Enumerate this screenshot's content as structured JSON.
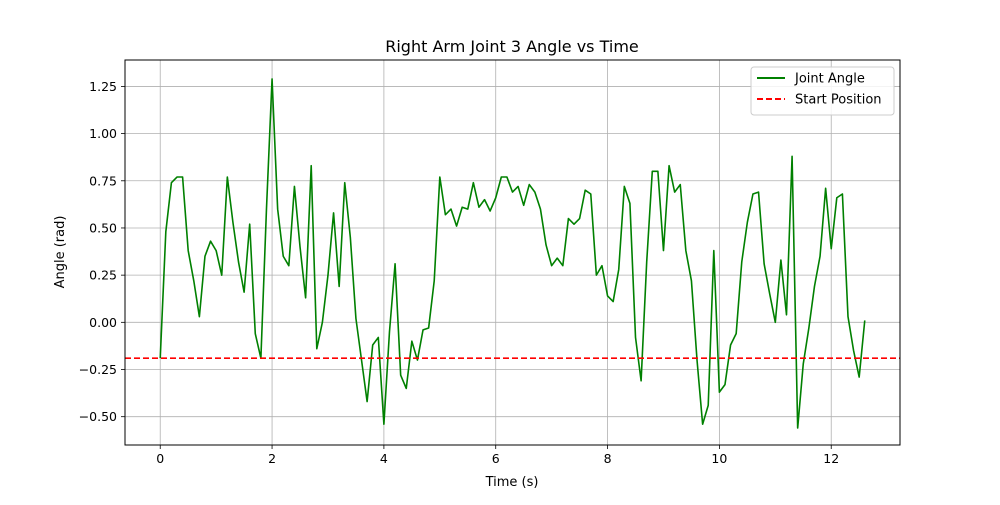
{
  "chart_data": {
    "type": "line",
    "title": "Right Arm Joint 3 Angle vs Time",
    "xlabel": "Time (s)",
    "ylabel": "Angle (rad)",
    "xlim": [
      -0.63,
      13.23
    ],
    "ylim": [
      -0.65,
      1.39
    ],
    "xticks": [
      0,
      2,
      4,
      6,
      8,
      10,
      12
    ],
    "xtick_labels": [
      "0",
      "2",
      "4",
      "6",
      "8",
      "10",
      "12"
    ],
    "yticks": [
      -0.5,
      -0.25,
      0.0,
      0.25,
      0.5,
      0.75,
      1.0,
      1.25
    ],
    "ytick_labels": [
      "−0.50",
      "−0.25",
      "0.00",
      "0.25",
      "0.50",
      "0.75",
      "1.00",
      "1.25"
    ],
    "grid": true,
    "legend_position": "top-right",
    "series": [
      {
        "name": "Joint Angle",
        "color": "#008000",
        "style": "solid",
        "x": [
          0.0,
          0.1,
          0.2,
          0.3,
          0.4,
          0.5,
          0.6,
          0.7,
          0.8,
          0.9,
          1.0,
          1.1,
          1.2,
          1.3,
          1.4,
          1.5,
          1.6,
          1.7,
          1.8,
          1.9,
          2.0,
          2.1,
          2.2,
          2.3,
          2.4,
          2.5,
          2.6,
          2.7,
          2.8,
          2.9,
          3.0,
          3.1,
          3.2,
          3.3,
          3.4,
          3.5,
          3.6,
          3.7,
          3.8,
          3.9,
          4.0,
          4.1,
          4.2,
          4.3,
          4.4,
          4.5,
          4.6,
          4.7,
          4.8,
          4.9,
          5.0,
          5.1,
          5.2,
          5.3,
          5.4,
          5.5,
          5.6,
          5.7,
          5.8,
          5.9,
          6.0,
          6.1,
          6.2,
          6.3,
          6.4,
          6.5,
          6.6,
          6.7,
          6.8,
          6.9,
          7.0,
          7.1,
          7.2,
          7.3,
          7.4,
          7.5,
          7.6,
          7.7,
          7.8,
          7.9,
          8.0,
          8.1,
          8.2,
          8.3,
          8.4,
          8.5,
          8.6,
          8.7,
          8.8,
          8.9,
          9.0,
          9.1,
          9.2,
          9.3,
          9.4,
          9.5,
          9.6,
          9.7,
          9.8,
          9.9,
          10.0,
          10.1,
          10.2,
          10.3,
          10.4,
          10.5,
          10.6,
          10.7,
          10.8,
          10.9,
          11.0,
          11.1,
          11.2,
          11.3,
          11.4,
          11.5,
          11.6,
          11.7,
          11.8,
          11.9,
          12.0,
          12.1,
          12.2,
          12.3,
          12.4,
          12.5,
          12.6
        ],
        "y": [
          -0.19,
          0.48,
          0.74,
          0.77,
          0.77,
          0.38,
          0.22,
          0.03,
          0.35,
          0.43,
          0.38,
          0.25,
          0.77,
          0.53,
          0.32,
          0.16,
          0.52,
          -0.06,
          -0.19,
          0.6,
          1.29,
          0.6,
          0.35,
          0.3,
          0.72,
          0.4,
          0.13,
          0.83,
          -0.14,
          0.0,
          0.25,
          0.58,
          0.19,
          0.74,
          0.45,
          0.02,
          -0.2,
          -0.42,
          -0.12,
          -0.08,
          -0.54,
          -0.05,
          0.31,
          -0.28,
          -0.35,
          -0.1,
          -0.2,
          -0.04,
          -0.03,
          0.22,
          0.77,
          0.57,
          0.6,
          0.51,
          0.61,
          0.6,
          0.74,
          0.61,
          0.65,
          0.59,
          0.66,
          0.77,
          0.77,
          0.69,
          0.72,
          0.62,
          0.73,
          0.69,
          0.6,
          0.41,
          0.3,
          0.34,
          0.3,
          0.55,
          0.52,
          0.55,
          0.7,
          0.68,
          0.25,
          0.3,
          0.14,
          0.11,
          0.28,
          0.72,
          0.63,
          -0.08,
          -0.31,
          0.32,
          0.8,
          0.8,
          0.38,
          0.83,
          0.69,
          0.73,
          0.38,
          0.22,
          -0.2,
          -0.54,
          -0.44,
          0.38,
          -0.37,
          -0.33,
          -0.12,
          -0.06,
          0.32,
          0.53,
          0.68,
          0.69,
          0.31,
          0.15,
          0.0,
          0.33,
          0.04,
          0.88,
          -0.56,
          -0.22,
          -0.03,
          0.19,
          0.35,
          0.71,
          0.39,
          0.66,
          0.68,
          0.03,
          -0.15,
          -0.29,
          0.01
        ]
      },
      {
        "name": "Start Position",
        "color": "#ff0000",
        "style": "dashed",
        "y_constant": -0.19
      }
    ]
  }
}
